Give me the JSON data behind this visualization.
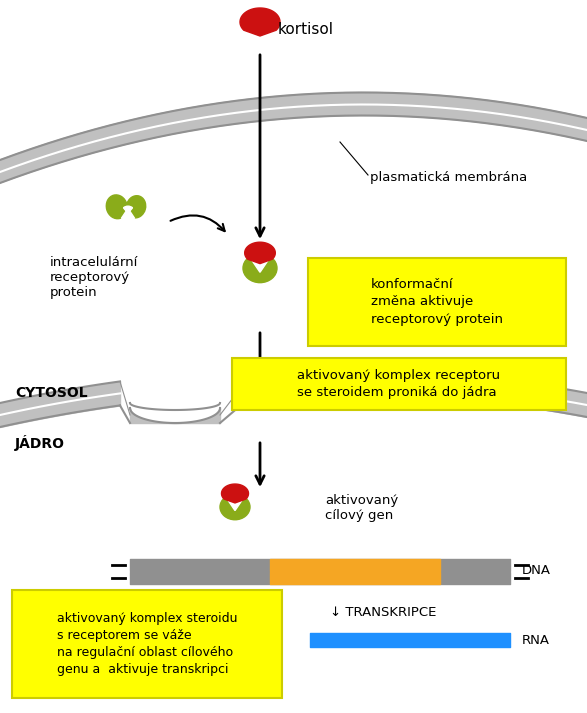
{
  "bg_color": "#ffffff",
  "receptor_green": "#8aac1a",
  "steroid_red": "#cc1111",
  "gray_mem": "#c0c0c0",
  "gray_dark": "#909090",
  "orange_color": "#f5a623",
  "rna_color": "#1e90ff",
  "dna_gray": "#909090",
  "text_color": "#000000",
  "yellow_color": "#ffff00",
  "labels": {
    "kortisol": "kortisol",
    "plasmaticka": "plasmatická membrána",
    "intracel": "intracelulární\nreceptorový\nprotein",
    "cytosol": "CYTOSOL",
    "jadro": "JÁDRO",
    "yellow1": "konformační\nzměna aktivuje\nreceptorový protein",
    "yellow2": "aktivovaný komplex receptoru\nse steroidem proniká do jádra",
    "yellow3": "aktivovaný komplex steroidu\ns receptorem se váže\nna regulační oblast cílového\ngenu a  aktivuje transkripci",
    "aktivovany": "aktivovaný\ncílový gen",
    "DNA": "DNA",
    "TRANSKRIPCE": "↓ TRANSKRIPCE",
    "RNA": "RNA"
  }
}
